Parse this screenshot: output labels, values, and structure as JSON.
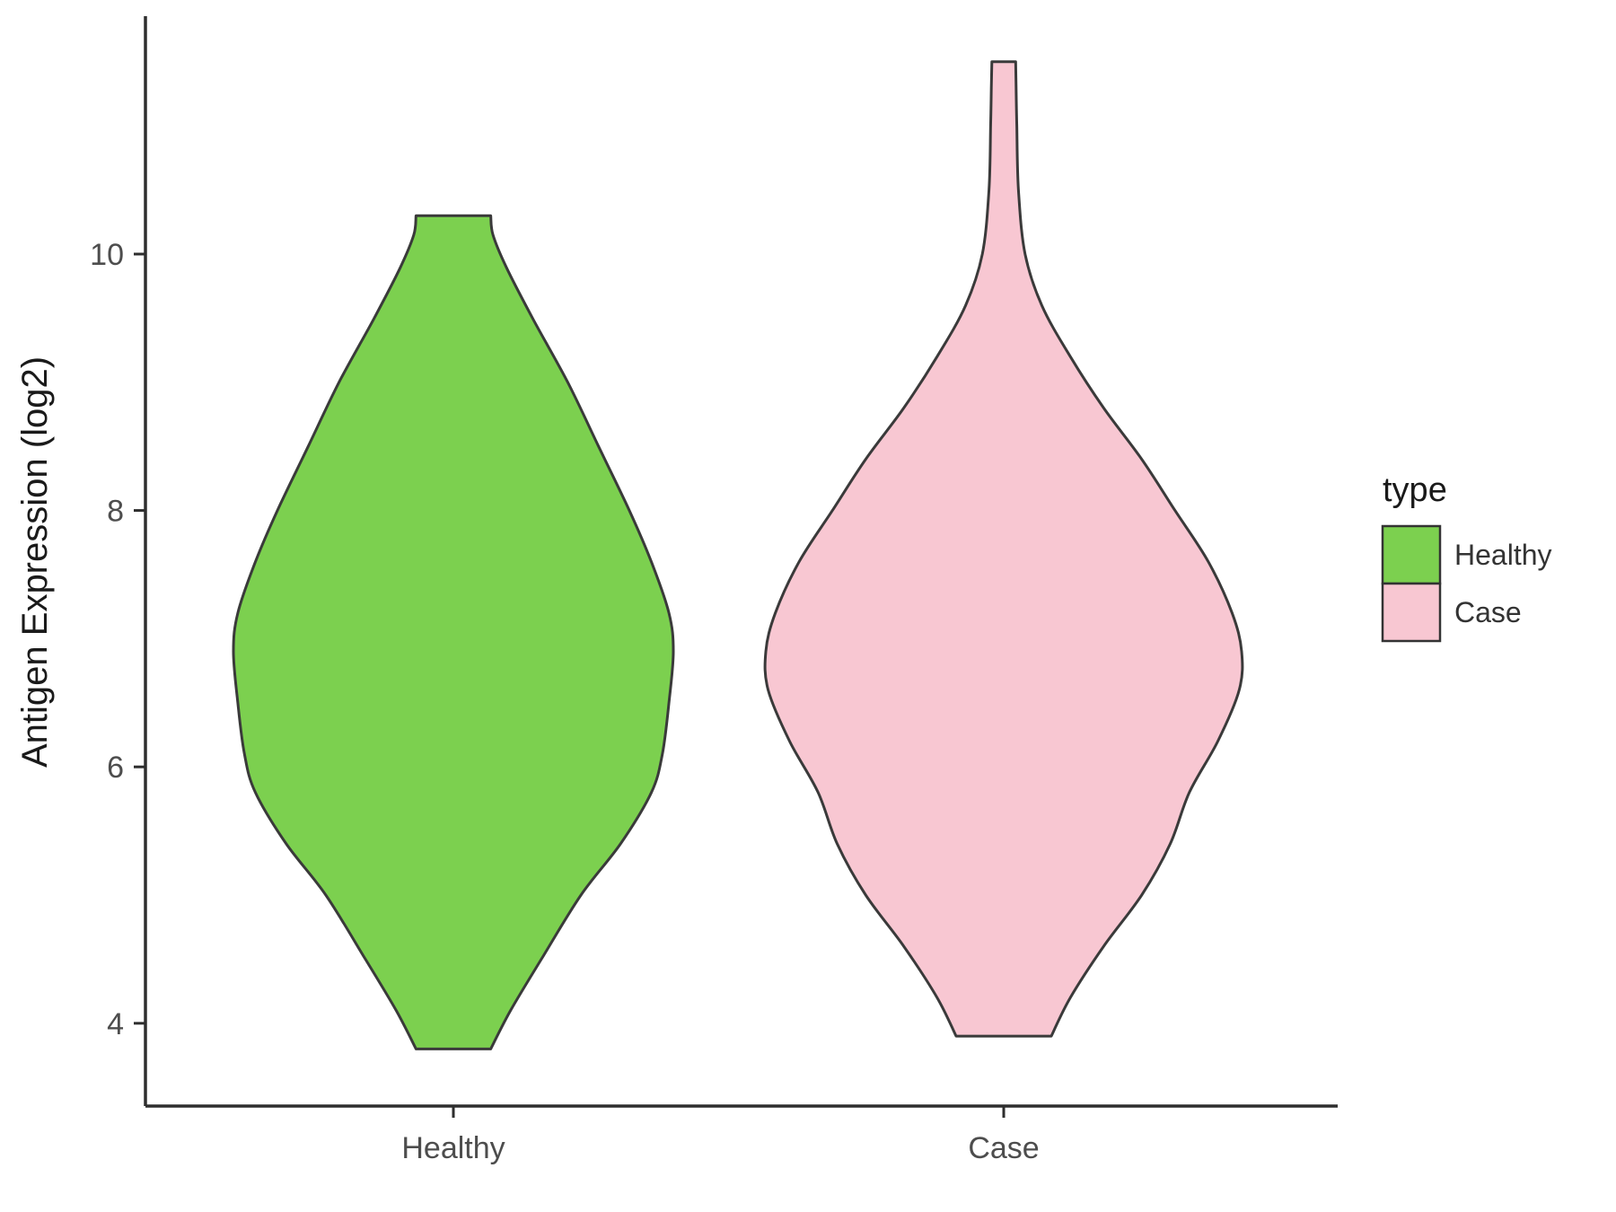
{
  "chart_data": {
    "type": "violin",
    "title": "",
    "xlabel": "",
    "ylabel": "Antigen Expression (log2)",
    "x_categories": [
      "Healthy",
      "Case"
    ],
    "y_ticks": [
      4,
      6,
      8,
      10
    ],
    "ylim": [
      3.3,
      11.9
    ],
    "grid": "off",
    "legend": {
      "title": "type",
      "position": "right",
      "entries": [
        {
          "label": "Healthy",
          "color": "#7CD04F"
        },
        {
          "label": "Case",
          "color": "#F8C7D2"
        }
      ]
    },
    "series": [
      {
        "name": "Healthy",
        "fill": "#7CD04F",
        "stroke": "#3a3a3a",
        "y_min": 3.8,
        "y_max": 10.3,
        "density_profile": [
          [
            3.8,
            0.17
          ],
          [
            4.1,
            0.26
          ],
          [
            4.5,
            0.4
          ],
          [
            5.0,
            0.58
          ],
          [
            5.4,
            0.76
          ],
          [
            5.8,
            0.9
          ],
          [
            6.1,
            0.95
          ],
          [
            6.5,
            0.98
          ],
          [
            6.9,
            1.0
          ],
          [
            7.2,
            0.98
          ],
          [
            7.6,
            0.9
          ],
          [
            8.0,
            0.8
          ],
          [
            8.5,
            0.66
          ],
          [
            9.0,
            0.52
          ],
          [
            9.5,
            0.36
          ],
          [
            9.9,
            0.24
          ],
          [
            10.15,
            0.18
          ],
          [
            10.3,
            0.17
          ]
        ]
      },
      {
        "name": "Case",
        "fill": "#F8C7D2",
        "stroke": "#3a3a3a",
        "y_min": 3.9,
        "y_max": 11.5,
        "density_profile": [
          [
            3.9,
            0.2
          ],
          [
            4.2,
            0.28
          ],
          [
            4.6,
            0.42
          ],
          [
            5.0,
            0.58
          ],
          [
            5.4,
            0.7
          ],
          [
            5.8,
            0.78
          ],
          [
            6.2,
            0.9
          ],
          [
            6.6,
            0.99
          ],
          [
            6.9,
            1.0
          ],
          [
            7.2,
            0.96
          ],
          [
            7.6,
            0.86
          ],
          [
            8.0,
            0.72
          ],
          [
            8.4,
            0.58
          ],
          [
            8.8,
            0.42
          ],
          [
            9.2,
            0.28
          ],
          [
            9.6,
            0.16
          ],
          [
            10.0,
            0.09
          ],
          [
            10.5,
            0.062
          ],
          [
            11.0,
            0.055
          ],
          [
            11.3,
            0.052
          ],
          [
            11.5,
            0.05
          ]
        ]
      }
    ]
  },
  "style": {
    "axis_color": "#2e2e2e",
    "tick_label_color": "#4d4d4d",
    "background": "#ffffff"
  }
}
